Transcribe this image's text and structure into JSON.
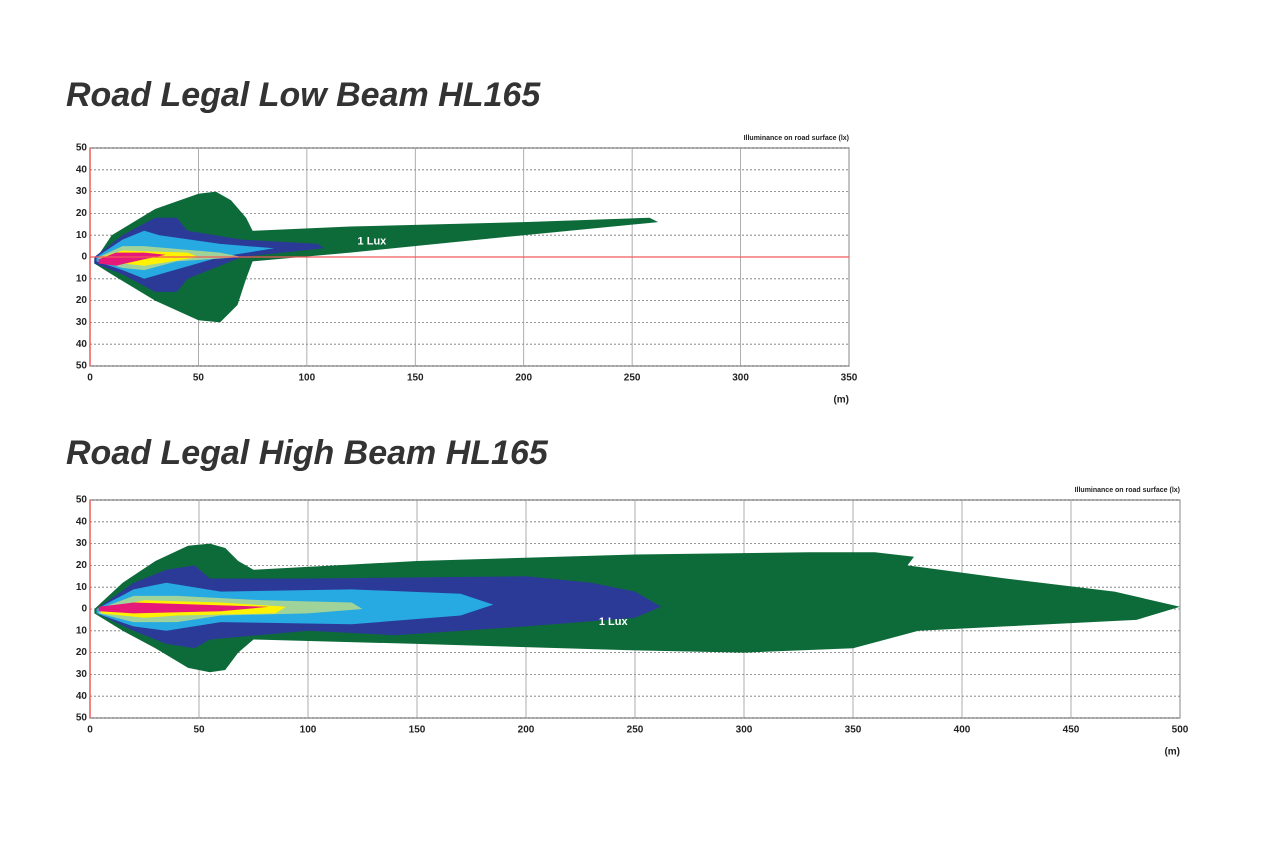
{
  "chart_data": [
    {
      "type": "contour",
      "title": "Road Legal Low Beam  HL165",
      "note": "Illuminance on road surface (lx)",
      "xlabel": "(m)",
      "xlim": [
        0,
        350
      ],
      "xticks": [
        0,
        50,
        100,
        150,
        200,
        250,
        300,
        350
      ],
      "ylim": [
        -50,
        50
      ],
      "yticks": [
        50,
        40,
        30,
        20,
        10,
        0,
        {
          "value": -10,
          "label": "10"
        },
        {
          "value": -20,
          "label": "20"
        },
        {
          "value": -30,
          "label": "30"
        },
        {
          "value": -40,
          "label": "40"
        },
        {
          "value": -50,
          "label": "50"
        }
      ],
      "grid": true,
      "zero_line": true,
      "annotation": {
        "text": "1 Lux",
        "x": 130,
        "y": 7
      },
      "series": [
        {
          "color": "#0d6b3a",
          "x": [
            2,
            10,
            30,
            50,
            58,
            65,
            72,
            75,
            120,
            200,
            258,
            262,
            200,
            120,
            75,
            72,
            68,
            60,
            50,
            30,
            10,
            2
          ],
          "y": [
            -2,
            10,
            22,
            29,
            30,
            26,
            18,
            12,
            14,
            16,
            18,
            16,
            10,
            2,
            -2,
            -10,
            -22,
            -30,
            -29,
            -20,
            -8,
            -3
          ]
        },
        {
          "color": "#2b3a97",
          "x": [
            2,
            15,
            30,
            40,
            45,
            70,
            105,
            108,
            70,
            45,
            40,
            30,
            15,
            2
          ],
          "y": [
            0,
            10,
            18,
            18,
            12,
            8,
            6,
            4,
            0,
            -10,
            -16,
            -16,
            -8,
            -3
          ]
        },
        {
          "color": "#27a9e1",
          "x": [
            3,
            15,
            25,
            32,
            60,
            85,
            60,
            32,
            25,
            15,
            3
          ],
          "y": [
            0,
            8,
            12,
            10,
            6,
            4,
            0,
            -8,
            -10,
            -6,
            -2
          ]
        },
        {
          "color": "#9fd39a",
          "x": [
            4,
            15,
            25,
            60,
            70,
            40,
            25,
            15,
            4
          ],
          "y": [
            0,
            5,
            5,
            2,
            0,
            -2,
            -6,
            -5,
            -2
          ]
        },
        {
          "color": "#fff200",
          "x": [
            5,
            15,
            45,
            50,
            25,
            15,
            5
          ],
          "y": [
            0,
            3,
            2,
            0,
            -4,
            -3,
            -2
          ]
        },
        {
          "color": "#e6197a",
          "x": [
            4,
            12,
            25,
            35,
            25,
            12,
            4
          ],
          "y": [
            -1,
            2,
            2,
            1,
            -1,
            -4,
            -3
          ]
        }
      ]
    },
    {
      "type": "contour",
      "title": "Road Legal High Beam  HL165",
      "note": "Illuminance on road surface (lx)",
      "xlabel": "(m)",
      "xlim": [
        0,
        500
      ],
      "xticks": [
        0,
        50,
        100,
        150,
        200,
        250,
        300,
        350,
        400,
        450,
        500
      ],
      "ylim": [
        -50,
        50
      ],
      "yticks": [
        50,
        40,
        30,
        20,
        10,
        0,
        {
          "value": -10,
          "label": "10"
        },
        {
          "value": -20,
          "label": "20"
        },
        {
          "value": -30,
          "label": "30"
        },
        {
          "value": -40,
          "label": "40"
        },
        {
          "value": -50,
          "label": "50"
        }
      ],
      "grid": true,
      "zero_line": false,
      "annotation": {
        "text": "1 Lux",
        "x": 240,
        "y": -6
      },
      "series": [
        {
          "color": "#0d6b3a",
          "x": [
            2,
            15,
            30,
            45,
            55,
            62,
            68,
            75,
            150,
            250,
            330,
            360,
            378,
            375,
            420,
            470,
            500,
            480,
            420,
            380,
            350,
            300,
            250,
            150,
            75,
            68,
            62,
            55,
            45,
            30,
            15,
            2
          ],
          "y": [
            0,
            12,
            22,
            29,
            30,
            28,
            22,
            18,
            22,
            25,
            26,
            26,
            24,
            20,
            14,
            8,
            1,
            -5,
            -8,
            -10,
            -18,
            -20,
            -19,
            -16,
            -14,
            -20,
            -28,
            -29,
            -27,
            -18,
            -10,
            -2
          ]
        },
        {
          "color": "#2b3a97",
          "x": [
            3,
            20,
            35,
            48,
            55,
            100,
            200,
            230,
            250,
            262,
            250,
            200,
            140,
            100,
            55,
            48,
            35,
            20,
            3
          ],
          "y": [
            0,
            12,
            18,
            20,
            14,
            14,
            15,
            12,
            8,
            1,
            -4,
            -8,
            -12,
            -10,
            -14,
            -18,
            -16,
            -10,
            -2
          ]
        },
        {
          "color": "#27a9e1",
          "x": [
            3,
            20,
            35,
            60,
            120,
            170,
            185,
            170,
            120,
            60,
            35,
            20,
            3
          ],
          "y": [
            0,
            9,
            12,
            8,
            9,
            7,
            2,
            -3,
            -7,
            -6,
            -10,
            -8,
            -2
          ]
        },
        {
          "color": "#9fd39a",
          "x": [
            4,
            20,
            40,
            80,
            120,
            125,
            100,
            60,
            40,
            20,
            4
          ],
          "y": [
            0,
            6,
            6,
            4,
            3,
            0,
            -2,
            -3,
            -6,
            -6,
            -2
          ]
        },
        {
          "color": "#fff200",
          "x": [
            5,
            25,
            60,
            90,
            85,
            40,
            25,
            5
          ],
          "y": [
            0,
            4,
            3,
            1,
            -2,
            -3,
            -4,
            -2
          ]
        },
        {
          "color": "#e6197a",
          "x": [
            4,
            20,
            50,
            82,
            60,
            20,
            4
          ],
          "y": [
            1,
            3,
            2,
            1,
            -1,
            -2,
            -1
          ]
        }
      ]
    }
  ]
}
